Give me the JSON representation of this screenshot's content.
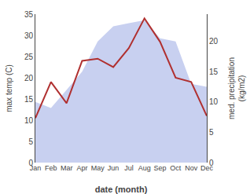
{
  "chart_data": {
    "type": "line",
    "xlabel": "date (month)",
    "ylabel": "max temp (C)",
    "y2label": "med. precipitation\n(kg/m2)",
    "categories": [
      "Jan",
      "Feb",
      "Mar",
      "Apr",
      "May",
      "Jun",
      "Jul",
      "Aug",
      "Sep",
      "Oct",
      "Nov",
      "Dec"
    ],
    "series": [
      {
        "type": "area",
        "axis": "y2",
        "color": "#c8d0f0",
        "values": [
          10.0,
          9.0,
          12.0,
          15.0,
          20.0,
          22.5,
          23.0,
          23.5,
          20.5,
          20.0,
          13.0,
          12.5
        ]
      },
      {
        "type": "line",
        "color": "#b03030",
        "values": [
          10.5,
          19.0,
          14.0,
          24.0,
          24.5,
          22.5,
          27.0,
          34.0,
          28.5,
          20.0,
          19.0,
          11.0
        ]
      }
    ],
    "ylim": [
      0,
      35
    ],
    "yticks": [
      0,
      5,
      10,
      15,
      20,
      25,
      30,
      35
    ],
    "y2lim": [
      0,
      24.5
    ],
    "y2ticks": [
      0,
      5,
      10,
      15,
      20
    ],
    "grid": false
  }
}
